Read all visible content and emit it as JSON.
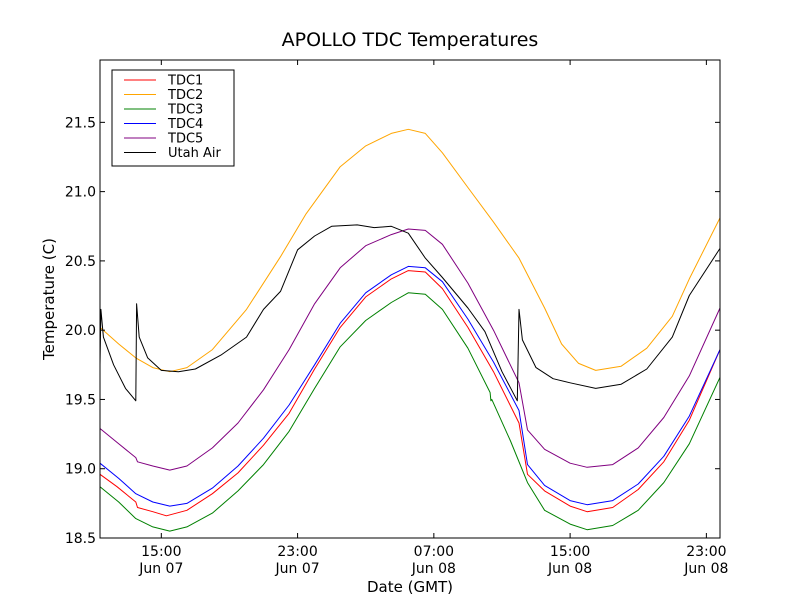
{
  "chart_data": {
    "type": "line",
    "title": "APOLLO TDC Temperatures",
    "xlabel": "Date (GMT)",
    "ylabel": "Temperature (C)",
    "x_units": "hours since Jun 07 00:00 GMT",
    "xlim": [
      11.4,
      47.8
    ],
    "ylim": [
      18.5,
      21.95
    ],
    "grid": false,
    "legend_position": "top-left",
    "x_ticks": [
      {
        "value": 15,
        "label_time": "15:00",
        "label_date": "Jun 07"
      },
      {
        "value": 23,
        "label_time": "23:00",
        "label_date": "Jun 07"
      },
      {
        "value": 31,
        "label_time": "07:00",
        "label_date": "Jun 08"
      },
      {
        "value": 39,
        "label_time": "15:00",
        "label_date": "Jun 08"
      },
      {
        "value": 47,
        "label_time": "23:00",
        "label_date": "Jun 08"
      }
    ],
    "y_ticks": [
      {
        "value": 18.5,
        "label": "18.5"
      },
      {
        "value": 19.0,
        "label": "19.0"
      },
      {
        "value": 19.5,
        "label": "19.5"
      },
      {
        "value": 20.0,
        "label": "20.0"
      },
      {
        "value": 20.5,
        "label": "20.5"
      },
      {
        "value": 21.0,
        "label": "21.0"
      },
      {
        "value": 21.5,
        "label": "21.5"
      }
    ],
    "series": [
      {
        "name": "TDC1",
        "color": "#ff0000",
        "x": [
          11.4,
          12.4,
          13.5,
          13.6,
          14.5,
          15.3,
          16.5,
          18,
          19.5,
          21,
          22.5,
          24,
          25.5,
          27,
          28.5,
          29.5,
          30.5,
          31.5,
          33,
          34.5,
          36,
          36.5,
          37.5,
          39,
          40,
          41.5,
          43,
          44.5,
          46,
          47.8
        ],
        "y": [
          18.96,
          18.87,
          18.76,
          18.72,
          18.69,
          18.66,
          18.7,
          18.82,
          18.97,
          19.17,
          19.4,
          19.72,
          20.02,
          20.24,
          20.37,
          20.43,
          20.42,
          20.3,
          20.02,
          19.7,
          19.33,
          18.96,
          18.84,
          18.73,
          18.69,
          18.72,
          18.85,
          19.05,
          19.35,
          19.86
        ]
      },
      {
        "name": "TDC2",
        "color": "#ffa500",
        "x": [
          11.4,
          12.5,
          13.5,
          14.5,
          15.5,
          16.5,
          18,
          20,
          22,
          23.5,
          25.5,
          27,
          28.5,
          29.5,
          30.5,
          31.5,
          33,
          34.5,
          36,
          37.5,
          38.5,
          39.5,
          40.5,
          42,
          43.5,
          45,
          46,
          47.8
        ],
        "y": [
          20.02,
          19.9,
          19.8,
          19.73,
          19.7,
          19.73,
          19.86,
          20.15,
          20.53,
          20.84,
          21.18,
          21.33,
          21.42,
          21.45,
          21.42,
          21.28,
          21.03,
          20.78,
          20.52,
          20.16,
          19.9,
          19.76,
          19.71,
          19.74,
          19.87,
          20.1,
          20.37,
          20.81
        ]
      },
      {
        "name": "TDC3",
        "color": "#008000",
        "x": [
          11.4,
          12.5,
          13.5,
          14.5,
          15.5,
          16.5,
          18,
          19.5,
          21,
          22.5,
          24,
          25.5,
          27,
          28.5,
          29.5,
          30.5,
          31.5,
          33,
          34.3,
          34.35,
          34.4,
          35.5,
          36.5,
          37.5,
          39,
          40,
          41.5,
          43,
          44.5,
          46,
          47.8
        ],
        "y": [
          18.87,
          18.76,
          18.64,
          18.58,
          18.55,
          18.58,
          18.68,
          18.84,
          19.03,
          19.27,
          19.58,
          19.88,
          20.07,
          20.2,
          20.27,
          20.26,
          20.15,
          19.87,
          19.55,
          19.49,
          19.5,
          19.2,
          18.9,
          18.7,
          18.6,
          18.56,
          18.59,
          18.7,
          18.9,
          19.18,
          19.66
        ]
      },
      {
        "name": "TDC4",
        "color": "#0000ff",
        "x": [
          11.4,
          12.5,
          13.5,
          14.5,
          15.5,
          16.5,
          18,
          19.5,
          21,
          22.5,
          24,
          25.5,
          27,
          28.5,
          29.5,
          30.5,
          31.5,
          33,
          34.5,
          36,
          36.5,
          37.5,
          39,
          40,
          41.5,
          43,
          44.5,
          46,
          47.8
        ],
        "y": [
          19.04,
          18.93,
          18.82,
          18.76,
          18.73,
          18.75,
          18.86,
          19.02,
          19.22,
          19.46,
          19.75,
          20.05,
          20.27,
          20.4,
          20.46,
          20.45,
          20.35,
          20.08,
          19.77,
          19.42,
          19.03,
          18.88,
          18.77,
          18.74,
          18.77,
          18.89,
          19.09,
          19.38,
          19.86
        ]
      },
      {
        "name": "TDC5",
        "color": "#800080",
        "x": [
          11.4,
          12.5,
          13.5,
          13.6,
          14.5,
          15.5,
          16.5,
          18,
          19.5,
          21,
          22.5,
          24,
          25.5,
          27,
          28.5,
          29.5,
          30.5,
          31.5,
          33,
          34.5,
          36,
          36.5,
          37.5,
          39,
          40,
          41.5,
          43,
          44.5,
          46,
          47.8
        ],
        "y": [
          19.29,
          19.18,
          19.08,
          19.05,
          19.02,
          18.99,
          19.02,
          19.15,
          19.33,
          19.57,
          19.86,
          20.19,
          20.45,
          20.61,
          20.69,
          20.73,
          20.72,
          20.62,
          20.34,
          20.0,
          19.62,
          19.28,
          19.14,
          19.04,
          19.01,
          19.03,
          19.15,
          19.37,
          19.67,
          20.16
        ]
      },
      {
        "name": "Utah Air",
        "color": "#000000",
        "x": [
          11.4,
          11.45,
          11.6,
          12.2,
          12.9,
          13.5,
          13.55,
          13.7,
          14.2,
          15,
          16,
          17,
          18.5,
          20,
          21,
          22,
          23,
          24,
          25,
          26.5,
          27.5,
          28.5,
          29.5,
          30.5,
          31.5,
          33,
          34,
          35,
          35.9,
          36.0,
          36.2,
          37,
          38,
          39,
          40.5,
          42,
          43.5,
          45,
          46,
          47.8
        ],
        "y": [
          19.75,
          20.15,
          19.95,
          19.75,
          19.58,
          19.49,
          20.19,
          19.95,
          19.8,
          19.71,
          19.7,
          19.72,
          19.82,
          19.95,
          20.15,
          20.28,
          20.58,
          20.68,
          20.75,
          20.76,
          20.74,
          20.75,
          20.7,
          20.52,
          20.38,
          20.16,
          19.99,
          19.7,
          19.49,
          20.15,
          19.93,
          19.73,
          19.65,
          19.62,
          19.58,
          19.61,
          19.72,
          19.95,
          20.25,
          20.59
        ]
      }
    ]
  }
}
